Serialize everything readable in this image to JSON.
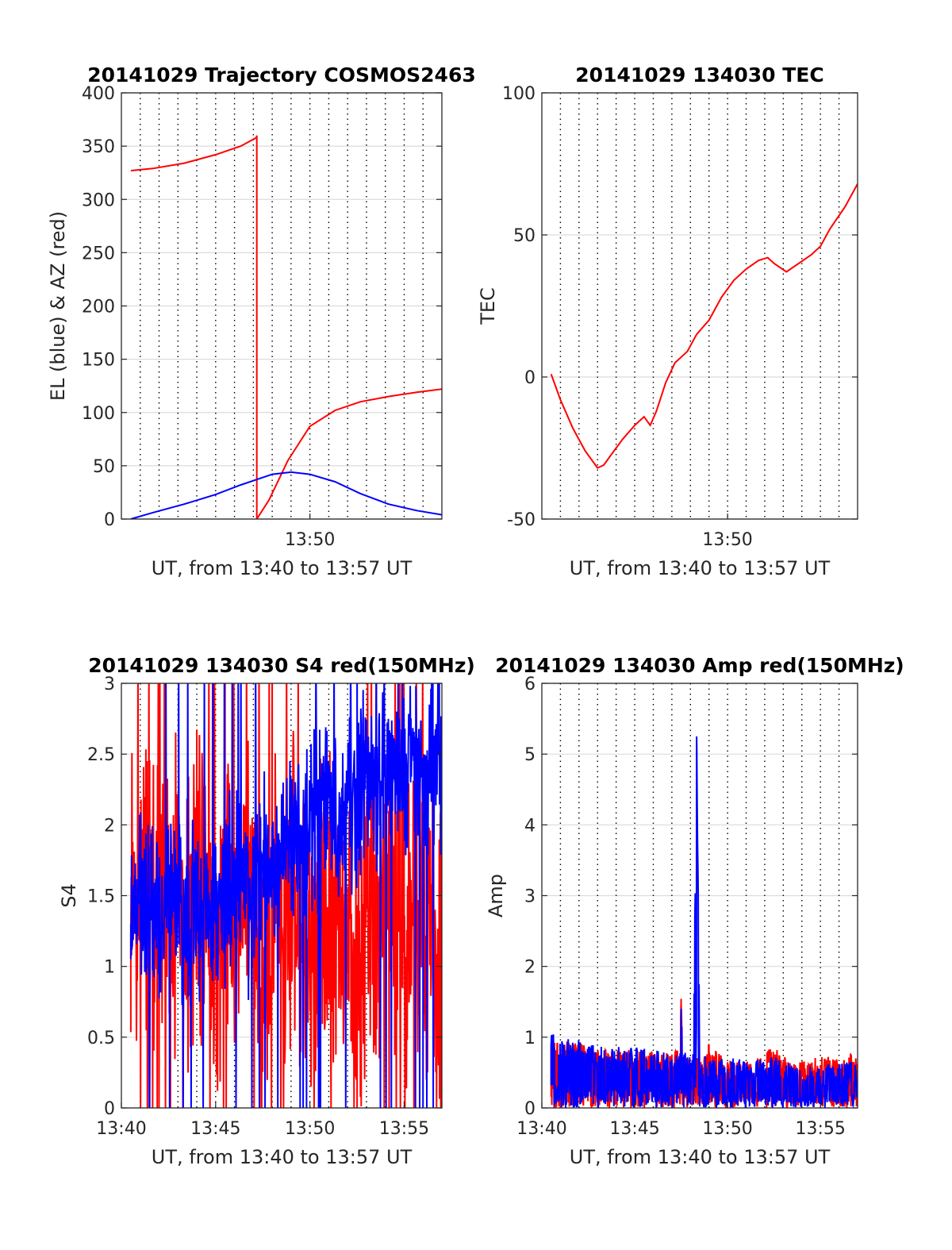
{
  "chart_data": [
    {
      "type": "line",
      "title": "20141029 Trajectory COSMOS2463",
      "xlabel": "UT, from 13:40 to 13:57 UT",
      "ylabel": "EL (blue) & AZ (red)",
      "xlim": [
        0,
        1020
      ],
      "ylim": [
        0,
        400
      ],
      "xtick_values": [
        600
      ],
      "xtick_labels": [
        "13:50"
      ],
      "ytick_values": [
        0,
        50,
        100,
        150,
        200,
        250,
        300,
        350,
        400
      ],
      "ytick_labels": [
        "0",
        "50",
        "100",
        "150",
        "200",
        "250",
        "300",
        "350",
        "400"
      ],
      "ygrid": true,
      "xgrid_minor_dotted_every_seconds": 60,
      "series": [
        {
          "color": "#ff0000",
          "x": [
            30,
            100,
            200,
            300,
            380,
            430,
            431,
            431,
            470,
            530,
            600,
            680,
            760,
            850,
            940,
            1020
          ],
          "y": [
            327,
            329,
            334,
            342,
            350,
            358,
            360,
            0,
            18,
            55,
            87,
            102,
            110,
            115,
            119,
            122
          ]
        },
        {
          "color": "#0000ff",
          "x": [
            30,
            100,
            200,
            300,
            380,
            430,
            480,
            540,
            600,
            680,
            760,
            850,
            940,
            1020
          ],
          "y": [
            0,
            6,
            14,
            23,
            32,
            37,
            42,
            44,
            42,
            35,
            24,
            14,
            8,
            4
          ]
        }
      ]
    },
    {
      "type": "line",
      "title": "20141029 134030 TEC",
      "xlabel": "UT, from 13:40 to 13:57 UT",
      "ylabel": "TEC",
      "xlim": [
        0,
        1020
      ],
      "ylim": [
        -50,
        100
      ],
      "xtick_values": [
        600
      ],
      "xtick_labels": [
        "13:50"
      ],
      "ytick_values": [
        -50,
        0,
        50,
        100
      ],
      "ytick_labels": [
        "-50",
        "0",
        "50",
        "100"
      ],
      "ygrid": true,
      "xgrid_minor_dotted_every_seconds": 60,
      "series": [
        {
          "color": "#ff0000",
          "x": [
            30,
            60,
            100,
            140,
            180,
            200,
            220,
            260,
            300,
            330,
            350,
            370,
            400,
            430,
            470,
            500,
            540,
            580,
            620,
            660,
            700,
            730,
            750,
            790,
            830,
            870,
            900,
            930,
            980,
            1020
          ],
          "y": [
            1,
            -8,
            -18,
            -26,
            -32,
            -31,
            -28,
            -22,
            -17,
            -14,
            -17,
            -12,
            -2,
            5,
            9,
            15,
            20,
            28,
            34,
            38,
            41,
            42,
            40,
            37,
            40,
            43,
            46,
            52,
            60,
            68
          ]
        }
      ]
    },
    {
      "type": "line",
      "title": "20141029 134030 S4 red(150MHz)",
      "xlabel": "UT, from 13:40 to 13:57 UT",
      "ylabel": "S4",
      "xlim": [
        0,
        1020
      ],
      "ylim": [
        0,
        3
      ],
      "xtick_values": [
        0,
        300,
        600,
        900
      ],
      "xtick_labels": [
        "13:40",
        "13:45",
        "13:50",
        "13:55"
      ],
      "ytick_values": [
        0,
        0.5,
        1,
        1.5,
        2,
        2.5,
        3
      ],
      "ytick_labels": [
        "0",
        "0.5",
        "1",
        "1.5",
        "2",
        "2.5",
        "3"
      ],
      "ygrid": true,
      "xgrid_minor_dotted_every_seconds": 60,
      "series": [
        {
          "color": "#ff0000",
          "x": [
            30,
            60,
            90,
            120,
            150,
            180,
            210,
            240,
            270,
            300,
            330,
            360,
            390,
            420,
            450,
            480,
            510,
            540,
            570,
            600,
            630,
            660,
            690,
            720,
            750,
            780,
            810,
            840,
            870,
            900,
            930,
            960,
            990,
            1020
          ],
          "y": [
            1.2,
            1.4,
            1.9,
            1.5,
            1.3,
            1.6,
            1.1,
            1.8,
            1.4,
            0.9,
            1.5,
            1.2,
            1.7,
            1.3,
            1.0,
            1.5,
            1.2,
            1.6,
            1.3,
            1.1,
            1.4,
            1.2,
            1.6,
            1.3,
            0.9,
            1.5,
            1.2,
            1.7,
            1.4,
            1.1,
            1.6,
            1.3,
            1.5,
            1.2
          ],
          "noise_amplitude": 0.9,
          "seed": 7
        },
        {
          "color": "#0000ff",
          "x": [
            30,
            60,
            90,
            120,
            150,
            180,
            210,
            240,
            270,
            300,
            330,
            360,
            390,
            420,
            450,
            480,
            510,
            540,
            570,
            600,
            630,
            660,
            690,
            720,
            750,
            780,
            810,
            840,
            870,
            900,
            930,
            960,
            990,
            1020
          ],
          "y": [
            1.3,
            1.5,
            1.4,
            1.3,
            1.6,
            1.4,
            1.3,
            1.5,
            1.4,
            1.3,
            1.5,
            1.6,
            1.4,
            1.5,
            1.7,
            1.6,
            1.8,
            1.9,
            2.0,
            1.9,
            2.1,
            2.2,
            2.0,
            2.3,
            2.1,
            2.4,
            2.2,
            2.5,
            2.3,
            2.4,
            2.6,
            2.3,
            2.5,
            2.4
          ],
          "noise_amplitude": 0.5,
          "seed": 13
        }
      ]
    },
    {
      "type": "line",
      "title": "20141029 134030 Amp red(150MHz)",
      "xlabel": "UT, from 13:40 to 13:57 UT",
      "ylabel": "Amp",
      "xlim": [
        0,
        1020
      ],
      "ylim": [
        0,
        6
      ],
      "xtick_values": [
        0,
        300,
        600,
        900
      ],
      "xtick_labels": [
        "13:40",
        "13:45",
        "13:50",
        "13:55"
      ],
      "ytick_values": [
        0,
        1,
        2,
        3,
        4,
        5,
        6
      ],
      "ytick_labels": [
        "0",
        "1",
        "2",
        "3",
        "4",
        "5",
        "6"
      ],
      "ygrid": true,
      "xgrid_minor_dotted_every_seconds": 60,
      "series": [
        {
          "color": "#ff0000",
          "x": [
            30,
            100,
            200,
            300,
            400,
            445,
            450,
            455,
            470,
            520,
            540,
            600,
            650,
            700,
            750,
            800,
            850,
            900,
            950,
            1000,
            1020
          ],
          "y": [
            0.9,
            0.8,
            0.7,
            0.7,
            0.65,
            0.7,
            1.45,
            0.7,
            0.6,
            0.55,
            0.8,
            0.55,
            0.55,
            0.6,
            0.75,
            0.55,
            0.55,
            0.6,
            0.6,
            0.65,
            0.55
          ],
          "noise_amplitude": 0.25,
          "seed": 21
        },
        {
          "color": "#0000ff",
          "x": [
            30,
            100,
            200,
            300,
            400,
            445,
            450,
            455,
            490,
            500,
            510,
            560,
            600,
            650,
            700,
            750,
            800,
            850,
            900,
            950,
            1000,
            1020
          ],
          "y": [
            0.9,
            0.8,
            0.7,
            0.7,
            0.65,
            0.7,
            1.4,
            0.7,
            0.6,
            5.25,
            0.6,
            0.55,
            0.55,
            0.5,
            0.5,
            0.6,
            0.45,
            0.4,
            0.45,
            0.45,
            0.5,
            0.4
          ],
          "noise_amplitude": 0.35,
          "seed": 33
        }
      ]
    }
  ]
}
